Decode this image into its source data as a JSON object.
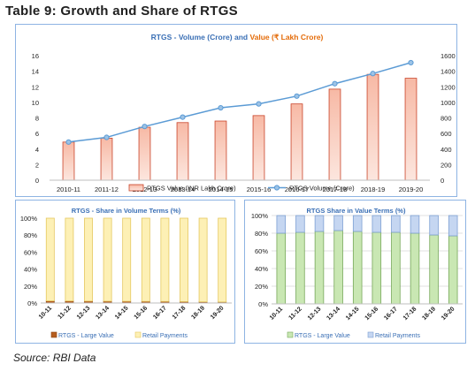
{
  "page_title": "Table 9: Growth and Share of RTGS",
  "source_note": "Source:  RBI Data",
  "colors": {
    "bar": "#f4a58c",
    "bar_dark": "#c9442a",
    "line": "#5b9bd5",
    "title_blue": "#3a6fb5",
    "title_orange": "#e46c0a",
    "cream": "#fdf0b5",
    "cream_border": "#e5c860",
    "brown": "#b55d1f",
    "green": "#c9e7b3",
    "green_border": "#77a85a",
    "blue_retail": "#c5d6f1",
    "blue_border": "#7d9fd3",
    "grid": "#d9d9d9",
    "frame": "#8eb4e3"
  },
  "chart_data": [
    {
      "type": "bar",
      "title_part1": "RTGS - Volume (Crore) and ",
      "title_part2": "Value (₹ Lakh Crore)",
      "categories": [
        "2010-11",
        "2011-12",
        "2012-13",
        "2013-14",
        "2014-15",
        "2015-16",
        "2016-17",
        "2017-18",
        "2018-19",
        "2019-20"
      ],
      "series": [
        {
          "name": "RTGS  Value (INR Lakh Crore)",
          "type": "bar",
          "axis": "left",
          "values": [
            4.9,
            5.4,
            6.8,
            7.4,
            7.6,
            8.3,
            9.8,
            11.7,
            13.6,
            13.1
          ]
        },
        {
          "name": "RTGS  Volume (Crore)",
          "type": "line",
          "axis": "right",
          "values": [
            490,
            550,
            690,
            810,
            930,
            980,
            1080,
            1240,
            1370,
            1510
          ]
        }
      ],
      "ylim_left": [
        0,
        16
      ],
      "yticks_left": [
        "0",
        "2",
        "4",
        "6",
        "8",
        "10",
        "12",
        "14",
        "16"
      ],
      "ylim_right": [
        0,
        1600
      ],
      "yticks_right": [
        "0",
        "200",
        "400",
        "600",
        "800",
        "1000",
        "1200",
        "1400",
        "1600"
      ],
      "grid": false,
      "legend_position": "bottom"
    },
    {
      "type": "bar",
      "stacked": true,
      "title": "RTGS - Share in Volume Terms (%)",
      "categories": [
        "10-11",
        "11-12",
        "12-13",
        "13-14",
        "14-15",
        "15-16",
        "16-17",
        "17-18",
        "18-19",
        "19-20"
      ],
      "series": [
        {
          "name": "RTGS - Large Value",
          "values": [
            2.5,
            2.4,
            2.2,
            2.1,
            2.0,
            1.9,
            1.8,
            1.6,
            1.4,
            1.2
          ]
        },
        {
          "name": "Retail Payments",
          "values": [
            97.5,
            97.6,
            97.8,
            97.9,
            98.0,
            98.1,
            98.2,
            98.4,
            98.6,
            98.8
          ]
        }
      ],
      "ylim": [
        0,
        100
      ],
      "yticks": [
        "0%",
        "20%",
        "40%",
        "60%",
        "80%",
        "100%"
      ],
      "grid": false,
      "legend_position": "bottom"
    },
    {
      "type": "bar",
      "stacked": true,
      "title": "RTGS Share in Value Terms (%)",
      "categories": [
        "10-11",
        "11-12",
        "12-13",
        "13-14",
        "14-15",
        "15-16",
        "16-17",
        "17-18",
        "18-19",
        "19-20"
      ],
      "series": [
        {
          "name": "RTGS - Large Value",
          "values": [
            80,
            81,
            82,
            83,
            82,
            81,
            81,
            80,
            78,
            77
          ]
        },
        {
          "name": "Retail Payments",
          "values": [
            20,
            19,
            18,
            17,
            18,
            19,
            19,
            20,
            22,
            23
          ]
        }
      ],
      "ylim": [
        0,
        100
      ],
      "yticks": [
        "0%",
        "20%",
        "40%",
        "60%",
        "80%",
        "100%"
      ],
      "grid": true,
      "legend_position": "bottom"
    }
  ]
}
